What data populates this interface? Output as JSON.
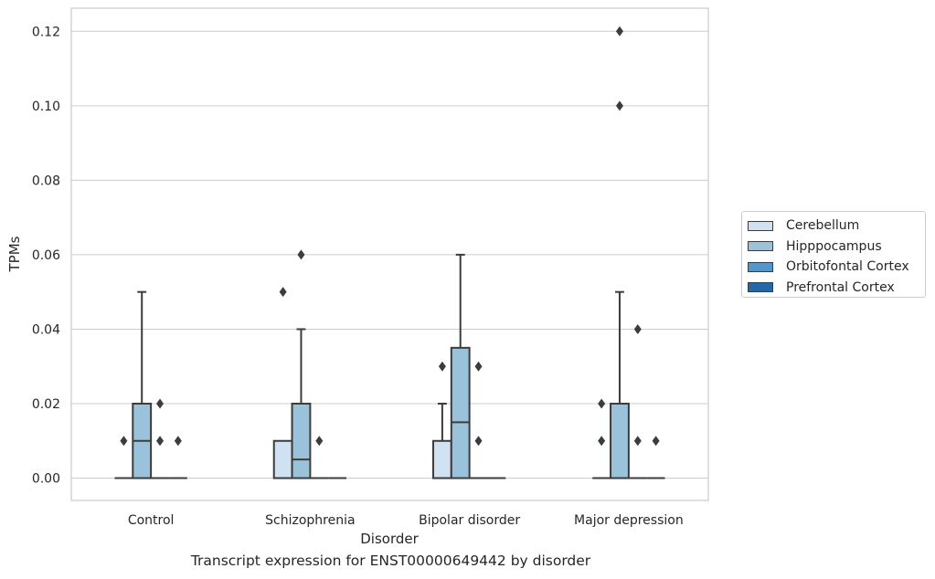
{
  "chart_data": {
    "type": "box",
    "xlabel": "Disorder",
    "ylabel": "TPMs",
    "caption": "Transcript expression for ENST00000649442 by disorder",
    "ylim": [
      -0.006,
      0.1262
    ],
    "yticks": [
      "0.00",
      "0.02",
      "0.04",
      "0.06",
      "0.08",
      "0.10",
      "0.12"
    ],
    "grid": true,
    "legend_position": "right",
    "categories": [
      "Control",
      "Schizophrenia",
      "Bipolar disorder",
      "Major depression"
    ],
    "series": [
      {
        "name": "Cerebellum",
        "color": "#d0e1f2",
        "boxes": [
          {
            "q1": 0,
            "median": 0,
            "q3": 0,
            "whislo": 0,
            "whishi": 0,
            "fliers": [
              0.01
            ]
          },
          {
            "q1": 0,
            "median": 0,
            "q3": 0.01,
            "whislo": 0,
            "whishi": 0.01,
            "fliers": [
              0.05
            ]
          },
          {
            "q1": 0,
            "median": 0,
            "q3": 0.01,
            "whislo": 0,
            "whishi": 0.02,
            "fliers": [
              0.03
            ]
          },
          {
            "q1": 0,
            "median": 0,
            "q3": 0,
            "whislo": 0,
            "whishi": 0,
            "fliers": [
              0.01,
              0.02
            ]
          }
        ]
      },
      {
        "name": "Hipppocampus",
        "color": "#9ac3db",
        "boxes": [
          {
            "q1": 0,
            "median": 0.01,
            "q3": 0.02,
            "whislo": 0,
            "whishi": 0.05,
            "fliers": []
          },
          {
            "q1": 0,
            "median": 0.005,
            "q3": 0.02,
            "whislo": 0,
            "whishi": 0.04,
            "fliers": [
              0.06
            ]
          },
          {
            "q1": 0,
            "median": 0.015,
            "q3": 0.035,
            "whislo": 0,
            "whishi": 0.06,
            "fliers": []
          },
          {
            "q1": 0,
            "median": 0,
            "q3": 0.02,
            "whislo": 0,
            "whishi": 0.05,
            "fliers": [
              0.1,
              0.12
            ]
          }
        ]
      },
      {
        "name": "Orbitofontal Cortex",
        "color": "#5696c7",
        "boxes": [
          {
            "q1": 0,
            "median": 0,
            "q3": 0,
            "whislo": 0,
            "whishi": 0,
            "fliers": [
              0.01,
              0.02
            ]
          },
          {
            "q1": 0,
            "median": 0,
            "q3": 0,
            "whislo": 0,
            "whishi": 0,
            "fliers": [
              0.01
            ]
          },
          {
            "q1": 0,
            "median": 0,
            "q3": 0,
            "whislo": 0,
            "whishi": 0,
            "fliers": [
              0.01,
              0.03
            ]
          },
          {
            "q1": 0,
            "median": 0,
            "q3": 0,
            "whislo": 0,
            "whishi": 0,
            "fliers": [
              0.01,
              0.04
            ]
          }
        ]
      },
      {
        "name": "Prefrontal Cortex",
        "color": "#2667a6",
        "boxes": [
          {
            "q1": 0,
            "median": 0,
            "q3": 0,
            "whislo": 0,
            "whishi": 0,
            "fliers": [
              0.01
            ]
          },
          {
            "q1": 0,
            "median": 0,
            "q3": 0,
            "whislo": 0,
            "whishi": 0,
            "fliers": []
          },
          {
            "q1": 0,
            "median": 0,
            "q3": 0,
            "whislo": 0,
            "whishi": 0,
            "fliers": []
          },
          {
            "q1": 0,
            "median": 0,
            "q3": 0,
            "whislo": 0,
            "whishi": 0,
            "fliers": [
              0.01
            ]
          }
        ]
      }
    ]
  }
}
